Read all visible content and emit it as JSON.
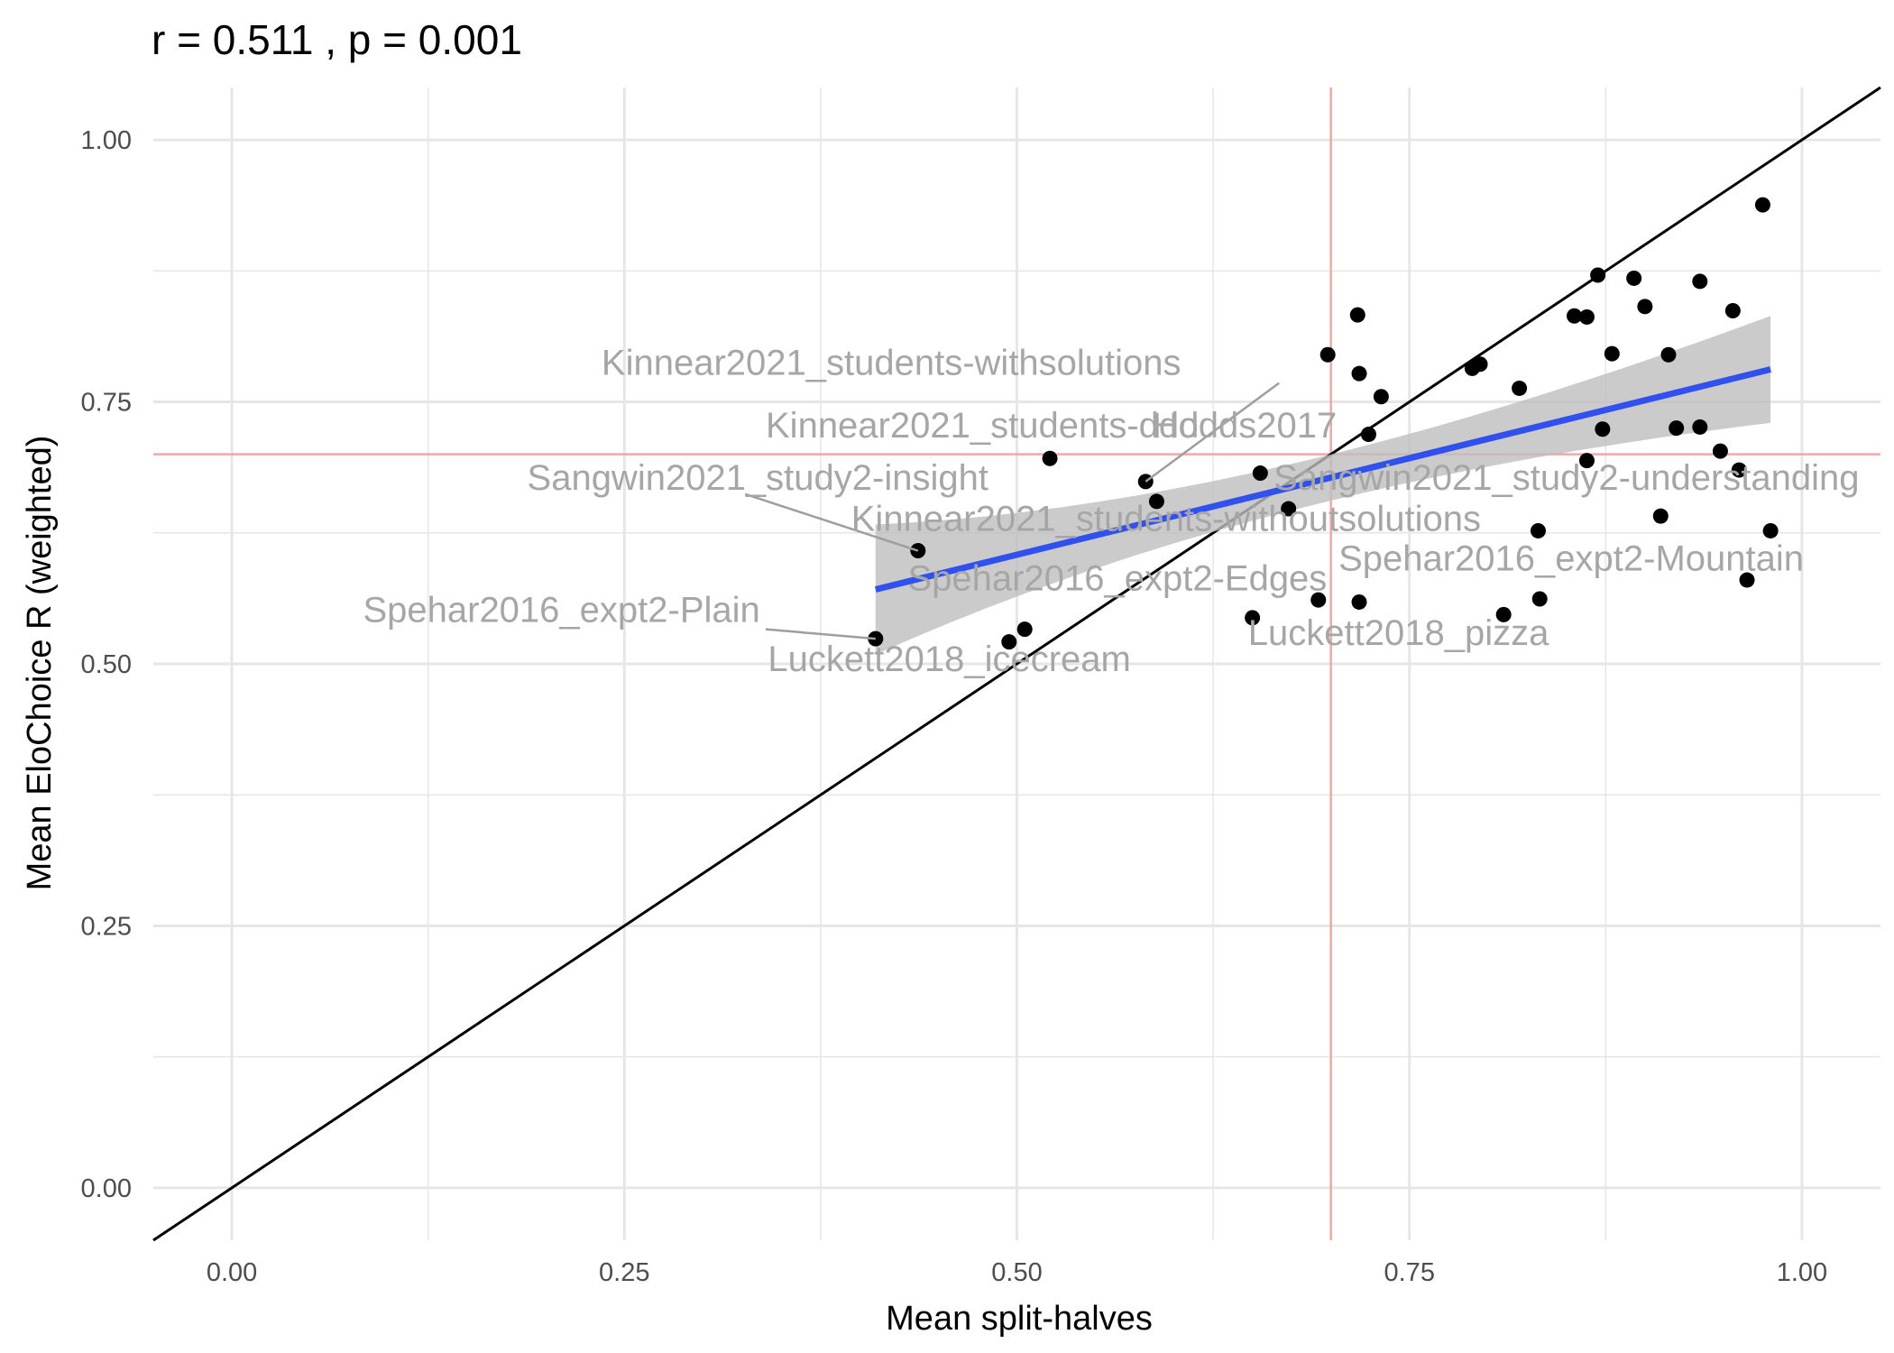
{
  "chart_data": {
    "type": "scatter",
    "title": "r =  0.511 , p =  0.001",
    "xlabel": "Mean split-halves",
    "ylabel": "Mean EloChoice R (weighted)",
    "xlim": [
      -0.05,
      1.05
    ],
    "ylim": [
      -0.05,
      1.05
    ],
    "x_ticks": [
      "0.00",
      "0.25",
      "0.50",
      "0.75",
      "1.00"
    ],
    "y_ticks": [
      "0.00",
      "0.25",
      "0.50",
      "0.75",
      "1.00"
    ],
    "grid": true,
    "legend": "none",
    "reference_lines": {
      "identity": true,
      "vline_x": 0.7,
      "hline_y": 0.7,
      "ref_color": "#f4a6a6",
      "identity_color": "#000000"
    },
    "colors": {
      "points": "#000000",
      "fit_line": "#3050f0",
      "ribbon": "#bebebe",
      "grid": "#e6e6e6",
      "labels": "#a6a6a6"
    },
    "fit": {
      "x": [
        0.41,
        0.98
      ],
      "y": [
        0.571,
        0.781
      ],
      "ci_lower": [
        0.508,
        0.73
      ],
      "ci_upper": [
        0.633,
        0.832
      ]
    },
    "points": [
      {
        "x": 0.41,
        "y": 0.524
      },
      {
        "x": 0.437,
        "y": 0.608
      },
      {
        "x": 0.495,
        "y": 0.521
      },
      {
        "x": 0.505,
        "y": 0.533
      },
      {
        "x": 0.521,
        "y": 0.696
      },
      {
        "x": 0.582,
        "y": 0.674
      },
      {
        "x": 0.589,
        "y": 0.655
      },
      {
        "x": 0.65,
        "y": 0.544
      },
      {
        "x": 0.655,
        "y": 0.682
      },
      {
        "x": 0.673,
        "y": 0.648
      },
      {
        "x": 0.692,
        "y": 0.561
      },
      {
        "x": 0.698,
        "y": 0.795
      },
      {
        "x": 0.717,
        "y": 0.833
      },
      {
        "x": 0.718,
        "y": 0.777
      },
      {
        "x": 0.718,
        "y": 0.559
      },
      {
        "x": 0.724,
        "y": 0.719
      },
      {
        "x": 0.732,
        "y": 0.755
      },
      {
        "x": 0.79,
        "y": 0.782
      },
      {
        "x": 0.795,
        "y": 0.786
      },
      {
        "x": 0.81,
        "y": 0.547
      },
      {
        "x": 0.82,
        "y": 0.763
      },
      {
        "x": 0.832,
        "y": 0.627
      },
      {
        "x": 0.833,
        "y": 0.562
      },
      {
        "x": 0.855,
        "y": 0.832
      },
      {
        "x": 0.863,
        "y": 0.831
      },
      {
        "x": 0.863,
        "y": 0.694
      },
      {
        "x": 0.87,
        "y": 0.871
      },
      {
        "x": 0.873,
        "y": 0.724
      },
      {
        "x": 0.879,
        "y": 0.796
      },
      {
        "x": 0.893,
        "y": 0.868
      },
      {
        "x": 0.9,
        "y": 0.841
      },
      {
        "x": 0.91,
        "y": 0.641
      },
      {
        "x": 0.915,
        "y": 0.795
      },
      {
        "x": 0.92,
        "y": 0.725
      },
      {
        "x": 0.935,
        "y": 0.865
      },
      {
        "x": 0.935,
        "y": 0.726
      },
      {
        "x": 0.948,
        "y": 0.703
      },
      {
        "x": 0.956,
        "y": 0.837
      },
      {
        "x": 0.96,
        "y": 0.685
      },
      {
        "x": 0.965,
        "y": 0.58
      },
      {
        "x": 0.975,
        "y": 0.938
      },
      {
        "x": 0.98,
        "y": 0.627
      }
    ],
    "annotations": [
      {
        "text": "Kinnear2021_students-withsolutions",
        "x": 0.42,
        "y": 0.776
      },
      {
        "text": "Kinnear2021_students-ddd",
        "x": 0.478,
        "y": 0.716
      },
      {
        "text": "Hodds2017",
        "x": 0.645,
        "y": 0.716
      },
      {
        "text": "Sangwin2021_study2-insight",
        "x": 0.335,
        "y": 0.666
      },
      {
        "text": "Sangwin2021_study2-understanding",
        "x": 0.85,
        "y": 0.666
      },
      {
        "text": "Kinnear2021_students-withoutsolutions",
        "x": 0.595,
        "y": 0.627
      },
      {
        "text": "Spehar2016_expt2-Mountain",
        "x": 0.853,
        "y": 0.589
      },
      {
        "text": "Spehar2016_expt2-Edges",
        "x": 0.564,
        "y": 0.57
      },
      {
        "text": "Spehar2016_expt2-Plain",
        "x": 0.21,
        "y": 0.54
      },
      {
        "text": "Luckett2018_pizza",
        "x": 0.743,
        "y": 0.518
      },
      {
        "text": "Luckett2018_icecream",
        "x": 0.457,
        "y": 0.493
      }
    ]
  }
}
